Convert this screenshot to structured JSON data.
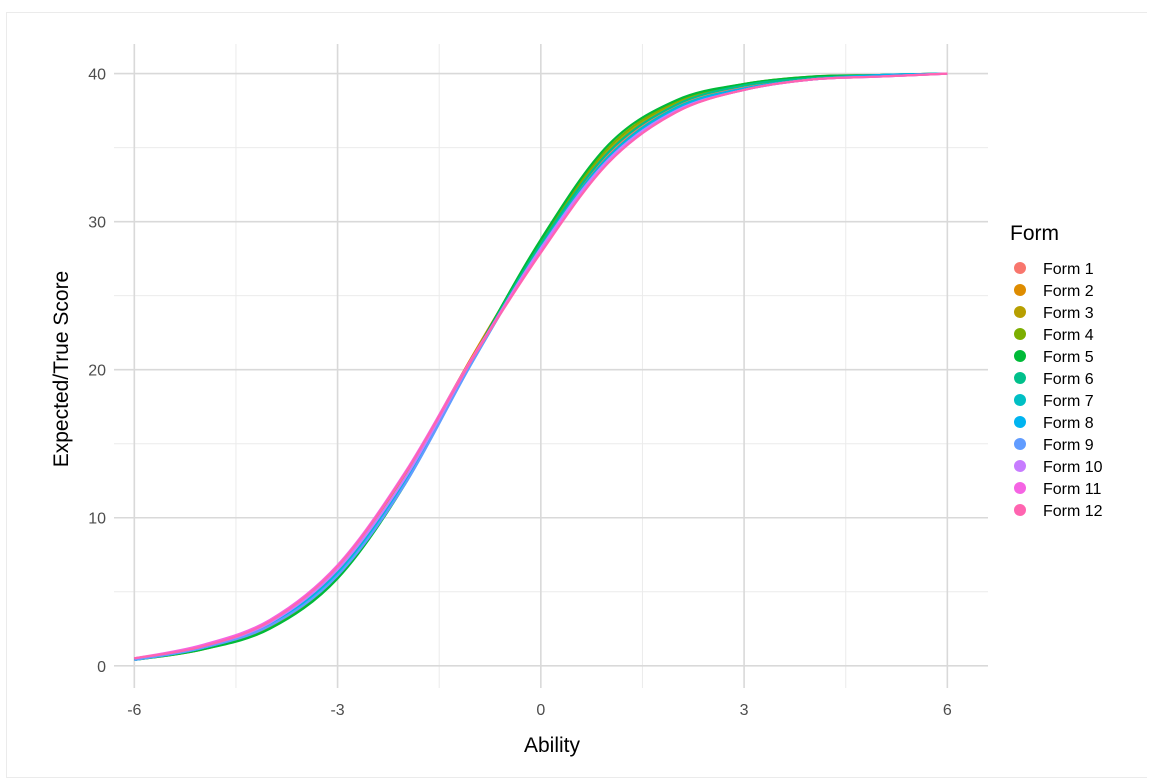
{
  "chart_data": {
    "type": "line",
    "title": "",
    "xlabel": "Ability",
    "ylabel": "Expected/True Score",
    "xlim": [
      -6.3,
      6.6
    ],
    "ylim": [
      -1.5,
      42
    ],
    "xticks": [
      -6,
      -3,
      0,
      3,
      6
    ],
    "xtick_labels": [
      "-6",
      "-3",
      "0",
      "3",
      "6"
    ],
    "yticks": [
      0,
      10,
      20,
      30,
      40
    ],
    "ytick_labels": [
      "0",
      "10",
      "20",
      "30",
      "40"
    ],
    "grid": true,
    "legend": {
      "title": "Form",
      "position": "right"
    },
    "x": [
      -6,
      -5,
      -4,
      -3,
      -2,
      -1,
      0,
      1,
      2,
      3,
      4,
      5,
      6
    ],
    "series": [
      {
        "name": "Form 1",
        "color": "#F8766D",
        "values": [
          0.5,
          1.3,
          3.0,
          6.6,
          13.0,
          21.0,
          28.4,
          34.5,
          37.8,
          39.1,
          39.7,
          39.9,
          40.0
        ]
      },
      {
        "name": "Form 2",
        "color": "#DE8C00",
        "values": [
          0.5,
          1.2,
          2.9,
          6.4,
          12.8,
          21.0,
          28.5,
          34.7,
          37.9,
          39.2,
          39.7,
          39.9,
          40.0
        ]
      },
      {
        "name": "Form 3",
        "color": "#B79F00",
        "values": [
          0.5,
          1.2,
          2.8,
          6.2,
          12.6,
          20.9,
          28.6,
          34.8,
          38.0,
          39.2,
          39.7,
          39.9,
          40.0
        ]
      },
      {
        "name": "Form 4",
        "color": "#7CAE00",
        "values": [
          0.4,
          1.1,
          2.6,
          6.0,
          12.4,
          20.8,
          28.7,
          35.0,
          38.1,
          39.3,
          39.8,
          39.9,
          40.0
        ]
      },
      {
        "name": "Form 5",
        "color": "#00BA38",
        "values": [
          0.4,
          1.1,
          2.5,
          5.9,
          12.3,
          20.8,
          28.8,
          35.2,
          38.2,
          39.3,
          39.8,
          39.9,
          40.0
        ]
      },
      {
        "name": "Form 6",
        "color": "#00C08B",
        "values": [
          0.4,
          1.2,
          2.7,
          6.1,
          12.5,
          20.8,
          28.5,
          34.7,
          37.9,
          39.2,
          39.7,
          39.9,
          40.0
        ]
      },
      {
        "name": "Form 7",
        "color": "#00BFC4",
        "values": [
          0.4,
          1.2,
          2.8,
          6.3,
          12.5,
          20.7,
          28.3,
          34.4,
          37.7,
          39.0,
          39.6,
          39.9,
          40.0
        ]
      },
      {
        "name": "Form 8",
        "color": "#00B4F0",
        "values": [
          0.4,
          1.2,
          2.8,
          6.2,
          12.4,
          20.6,
          28.2,
          34.3,
          37.6,
          39.0,
          39.6,
          39.9,
          40.0
        ]
      },
      {
        "name": "Form 9",
        "color": "#619CFF",
        "values": [
          0.4,
          1.2,
          2.7,
          6.1,
          12.3,
          20.6,
          28.2,
          34.2,
          37.5,
          38.9,
          39.6,
          39.8,
          40.0
        ]
      },
      {
        "name": "Form 10",
        "color": "#C77CFF",
        "values": [
          0.5,
          1.3,
          2.9,
          6.5,
          12.7,
          20.8,
          28.2,
          34.2,
          37.5,
          38.9,
          39.6,
          39.8,
          40.0
        ]
      },
      {
        "name": "Form 11",
        "color": "#F564E3",
        "values": [
          0.5,
          1.4,
          3.1,
          6.8,
          13.1,
          20.9,
          28.0,
          34.0,
          37.4,
          38.9,
          39.6,
          39.8,
          40.0
        ]
      },
      {
        "name": "Form 12",
        "color": "#FF64B0",
        "values": [
          0.5,
          1.3,
          3.0,
          6.7,
          13.0,
          20.8,
          27.9,
          34.0,
          37.4,
          38.9,
          39.6,
          39.8,
          40.0
        ]
      }
    ]
  }
}
